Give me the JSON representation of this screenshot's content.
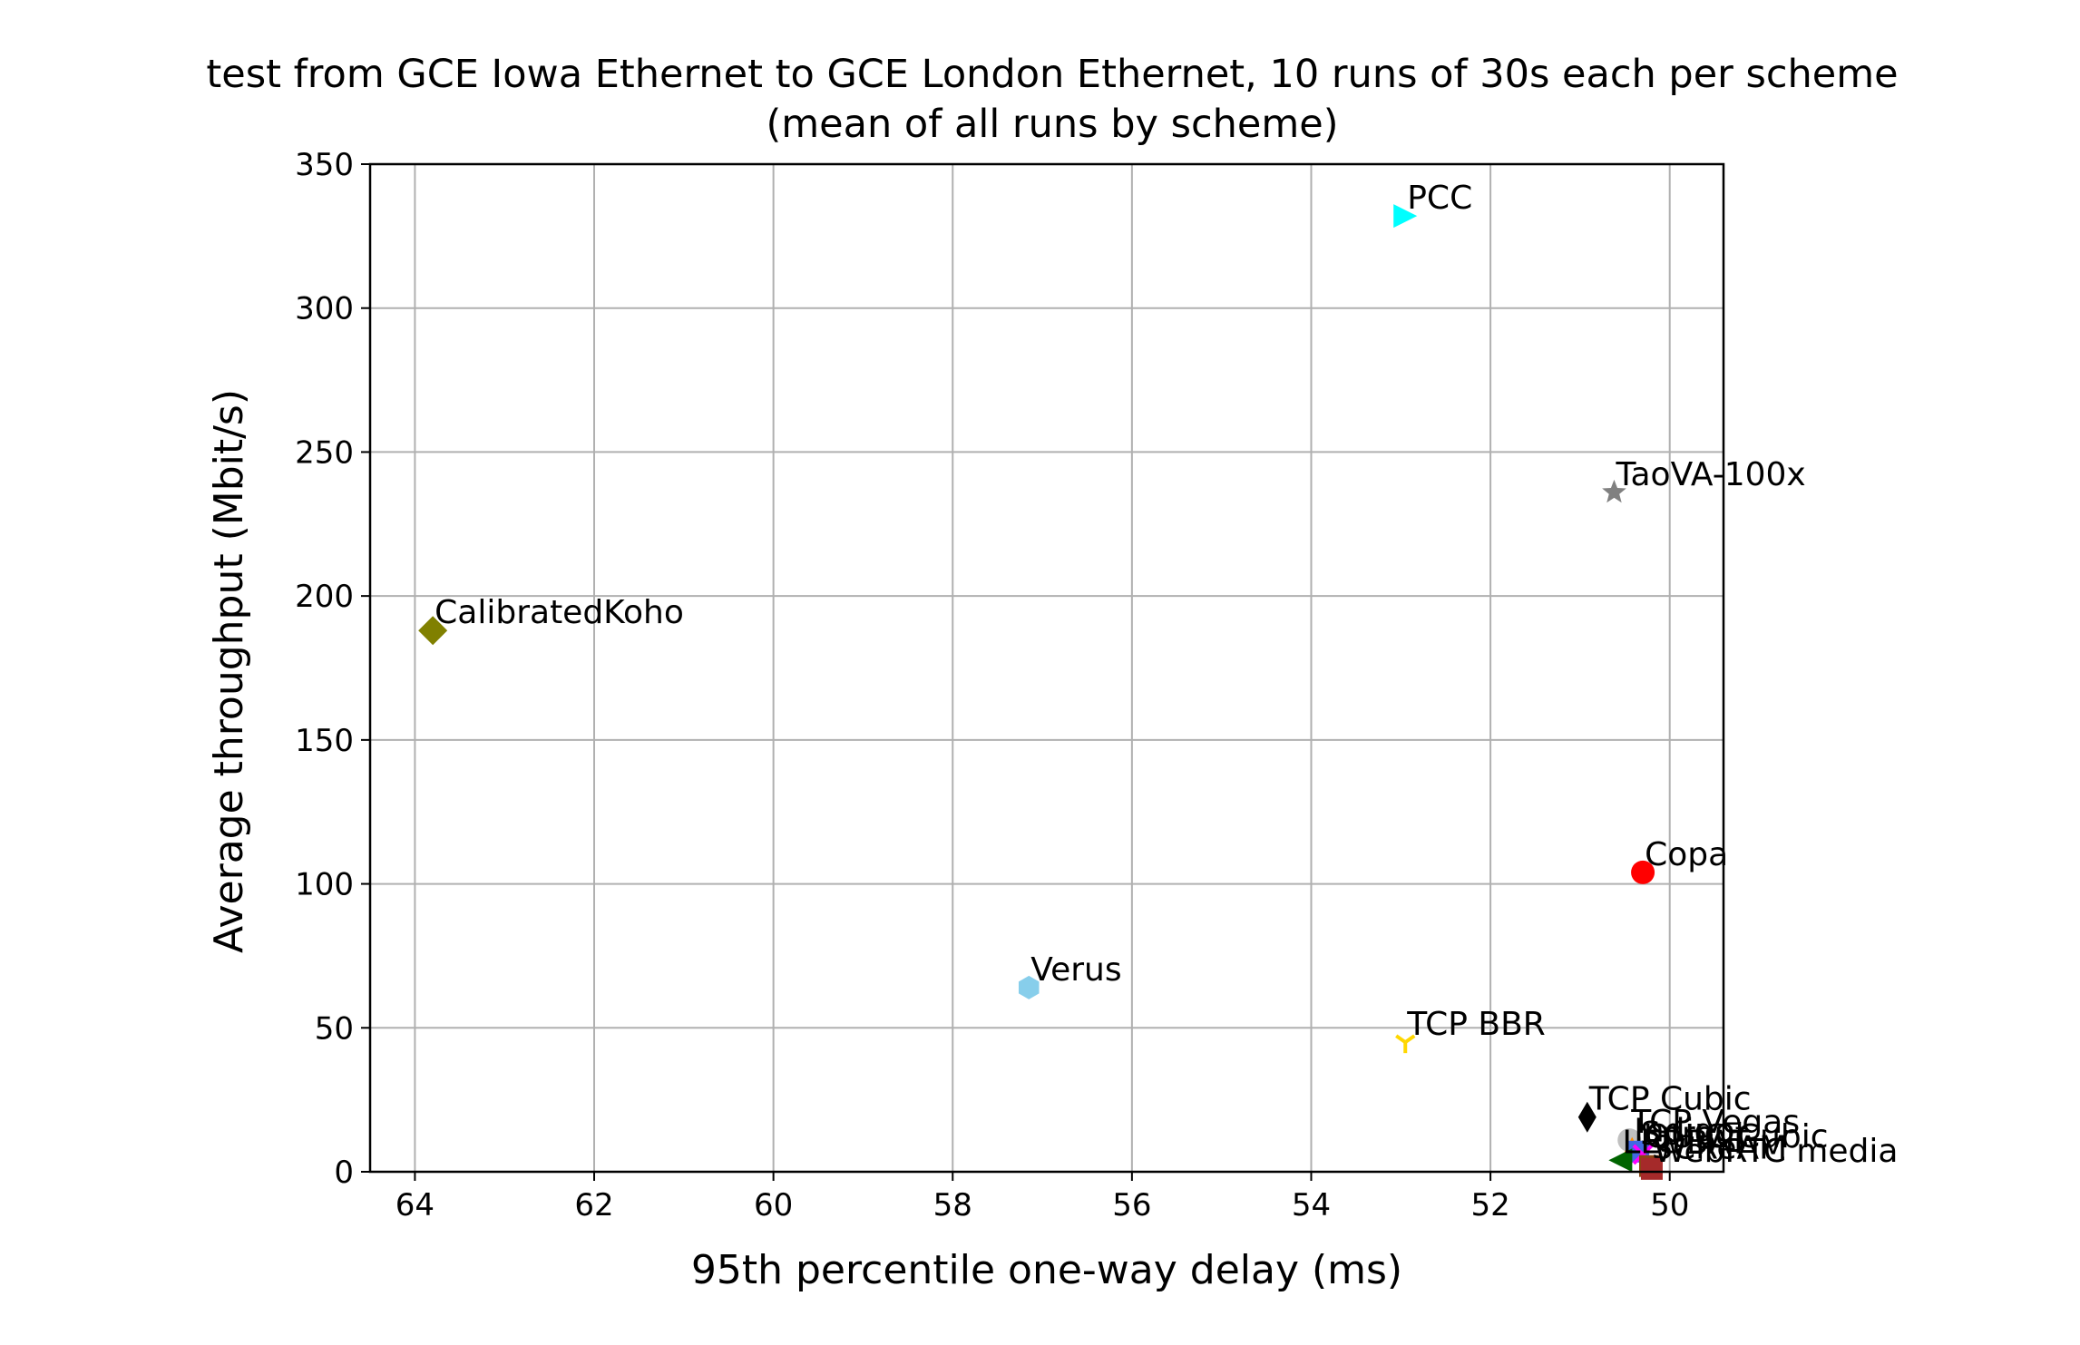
{
  "chart_data": {
    "type": "scatter",
    "title": "test from GCE Iowa Ethernet to GCE London Ethernet, 10 runs of 30s each per scheme",
    "subtitle": "(mean of all runs by scheme)",
    "xlabel": "95th percentile one-way delay (ms)",
    "ylabel": "Average throughput (Mbit/s)",
    "xlim": [
      64.5,
      49.4
    ],
    "ylim": [
      0,
      350
    ],
    "x_inverted": true,
    "grid": true,
    "xticks": [
      64,
      62,
      60,
      58,
      56,
      54,
      52,
      50
    ],
    "yticks": [
      0,
      50,
      100,
      150,
      200,
      250,
      300,
      350
    ],
    "points": [
      {
        "name": "PCC",
        "x": 52.95,
        "y": 332,
        "color": "#00ffff",
        "marker": "triangle-right"
      },
      {
        "name": "TaoVA-100x",
        "x": 50.62,
        "y": 236,
        "color": "#808080",
        "marker": "star"
      },
      {
        "name": "CalibratedKoho",
        "x": 63.8,
        "y": 188,
        "color": "#808000",
        "marker": "diamond"
      },
      {
        "name": "Copa",
        "x": 50.3,
        "y": 104,
        "color": "#ff0000",
        "marker": "circle"
      },
      {
        "name": "Verus",
        "x": 57.15,
        "y": 64,
        "color": "#87ceeb",
        "marker": "hexagon"
      },
      {
        "name": "TCP BBR",
        "x": 52.95,
        "y": 45,
        "color": "#ffd700",
        "marker": "tri-down"
      },
      {
        "name": "TCP Cubic",
        "x": 50.92,
        "y": 19,
        "color": "#000000",
        "marker": "thin-diamond"
      },
      {
        "name": "TCP Vegas",
        "x": 50.45,
        "y": 11,
        "color": "#c0c0c0",
        "marker": "circle"
      },
      {
        "name": "Indigo",
        "x": 50.42,
        "y": 8,
        "color": "#ff8c00",
        "marker": "triangle-up"
      },
      {
        "name": "Sprout",
        "x": 50.35,
        "y": 7,
        "color": "#4169e1",
        "marker": "square"
      },
      {
        "name": "QUIC Cubic",
        "x": 50.3,
        "y": 6,
        "color": "#ff00ff",
        "marker": "x"
      },
      {
        "name": "LEDBAT",
        "x": 50.55,
        "y": 4,
        "color": "#006400",
        "marker": "triangle-left"
      },
      {
        "name": "SCReAM",
        "x": 50.22,
        "y": 2,
        "color": "#8b4513",
        "marker": "square"
      },
      {
        "name": "WebRTC media",
        "x": 50.2,
        "y": 1,
        "color": "#a52a2a",
        "marker": "square"
      }
    ]
  }
}
